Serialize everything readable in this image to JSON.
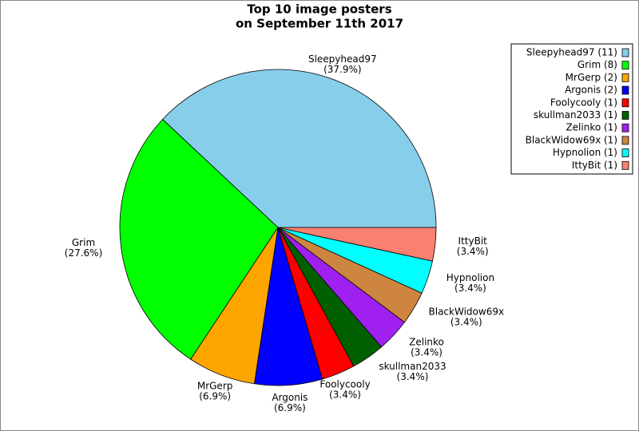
{
  "chart_data": {
    "type": "pie",
    "title": [
      "Top 10 image posters",
      "on September 11th 2017"
    ],
    "categories": [
      "Sleepyhead97",
      "Grim",
      "MrGerp",
      "Argonis",
      "Foolycooly",
      "skullman2033",
      "Zelinko",
      "BlackWidow69x",
      "Hypnolion",
      "IttyBit"
    ],
    "values": [
      37.9,
      27.6,
      6.9,
      6.9,
      3.4,
      3.4,
      3.4,
      3.4,
      3.4,
      3.4
    ],
    "value_labels": [
      "(37.9%)",
      "(27.6%)",
      "(6.9%)",
      "(6.9%)",
      "(3.4%)",
      "(3.4%)",
      "(3.4%)",
      "(3.4%)",
      "(3.4%)",
      "(3.4%)"
    ],
    "legend_labels": [
      "Sleepyhead97 (11)",
      "Grim (8)",
      "MrGerp (2)",
      "Argonis (2)",
      "Foolycooly (1)",
      "skullman2033 (1)",
      "Zelinko (1)",
      "BlackWidow69x (1)",
      "Hypnolion (1)",
      "IttyBit (1)"
    ],
    "colors": [
      "#87ceeb",
      "#00ff00",
      "#ffa500",
      "#0000ff",
      "#ff0000",
      "#006000",
      "#a020f0",
      "#cd853f",
      "#00ffff",
      "#fa8072"
    ],
    "legend": "upper right"
  }
}
